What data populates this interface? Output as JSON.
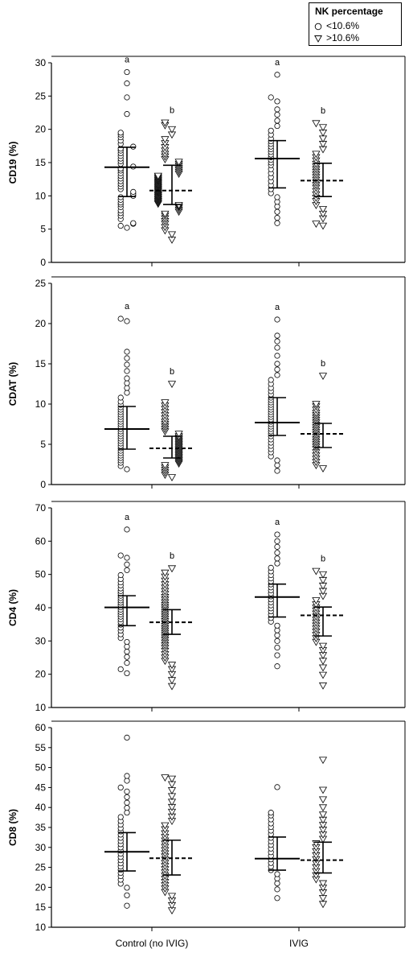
{
  "legend": {
    "title": "NK percentage",
    "items": [
      {
        "label": "<10.6%",
        "marker": "circle"
      },
      {
        "label": ">10.6%",
        "marker": "triangle-down"
      }
    ]
  },
  "chart_data": [
    {
      "type": "scatter",
      "ylabel": "CD19 (%)",
      "ylim": [
        0,
        30
      ],
      "yticks": [
        0,
        5,
        10,
        15,
        20,
        25,
        30
      ],
      "categories": [
        "Control (no IVIG)",
        "IVIG"
      ],
      "groups": [
        {
          "category": "Control (no IVIG)",
          "series": "<10.6%",
          "median": 14.3,
          "q1": 9.9,
          "q3": 17.3,
          "letter": "a",
          "values": [
            5.2,
            5.5,
            5.8,
            5.9,
            6.5,
            7.0,
            7.4,
            7.8,
            8.3,
            8.7,
            9.0,
            9.4,
            9.8,
            10.0,
            10.3,
            10.6,
            11.0,
            11.4,
            11.8,
            12.2,
            12.6,
            13.0,
            13.4,
            13.8,
            14.1,
            14.4,
            14.8,
            15.2,
            15.6,
            16.0,
            16.4,
            16.8,
            17.1,
            17.4,
            17.8,
            18.3,
            18.8,
            19.2,
            19.5,
            22.3,
            24.8,
            26.9,
            28.6
          ]
        },
        {
          "category": "Control (no IVIG)",
          "series": ">10.6%",
          "median": 10.8,
          "q1": 8.7,
          "q3": 14.6,
          "letter": "b",
          "values": [
            3.4,
            4.2,
            4.8,
            5.3,
            5.8,
            6.2,
            6.6,
            7.0,
            7.3,
            7.6,
            7.9,
            8.2,
            8.4,
            8.6,
            8.8,
            9.0,
            9.2,
            9.4,
            9.6,
            9.8,
            10.0,
            10.2,
            10.4,
            10.6,
            10.8,
            11.0,
            11.2,
            11.4,
            11.6,
            11.8,
            12.0,
            12.2,
            12.4,
            12.6,
            12.8,
            13.0,
            13.3,
            13.6,
            13.9,
            14.2,
            14.5,
            14.8,
            15.1,
            15.5,
            15.9,
            16.3,
            16.8,
            17.3,
            17.9,
            18.5,
            19.2,
            20.0,
            20.6,
            21.0
          ]
        },
        {
          "category": "IVIG",
          "series": "<10.6%",
          "median": 15.6,
          "q1": 11.2,
          "q3": 18.3,
          "letter": "a",
          "values": [
            5.9,
            6.7,
            7.6,
            8.4,
            9.1,
            9.8,
            10.4,
            11.0,
            11.6,
            12.2,
            12.8,
            13.4,
            14.0,
            14.6,
            15.0,
            15.4,
            15.8,
            16.2,
            16.6,
            17.0,
            17.4,
            17.8,
            18.2,
            18.6,
            19.2,
            19.8,
            20.5,
            21.3,
            22.2,
            23.0,
            24.2,
            24.8,
            28.2
          ]
        },
        {
          "category": "IVIG",
          "series": ">10.6%",
          "median": 12.3,
          "q1": 9.9,
          "q3": 14.9,
          "letter": "b",
          "values": [
            5.5,
            5.8,
            6.6,
            7.3,
            8.0,
            8.6,
            9.2,
            9.7,
            10.2,
            10.7,
            11.2,
            11.6,
            12.0,
            12.4,
            12.8,
            13.2,
            13.6,
            14.0,
            14.4,
            14.8,
            15.3,
            15.8,
            16.3,
            17.0,
            17.8,
            18.6,
            19.5,
            20.3,
            20.9
          ]
        }
      ]
    },
    {
      "type": "scatter",
      "ylabel": "CDAT (%)",
      "ylim": [
        0,
        25
      ],
      "yticks": [
        0,
        5,
        10,
        15,
        20,
        25
      ],
      "categories": [
        "Control (no IVIG)",
        "IVIG"
      ],
      "groups": [
        {
          "category": "Control (no IVIG)",
          "series": "<10.6%",
          "median": 6.9,
          "q1": 4.4,
          "q3": 9.7,
          "letter": "a",
          "values": [
            1.9,
            2.3,
            2.7,
            3.0,
            3.3,
            3.6,
            3.9,
            4.2,
            4.5,
            4.8,
            5.1,
            5.4,
            5.7,
            6.0,
            6.3,
            6.6,
            6.9,
            7.2,
            7.5,
            7.8,
            8.1,
            8.4,
            8.7,
            9.0,
            9.3,
            9.6,
            9.9,
            10.3,
            10.8,
            11.4,
            12.0,
            12.6,
            13.2,
            14.1,
            14.9,
            15.7,
            16.5,
            20.3,
            20.6
          ]
        },
        {
          "category": "Control (no IVIG)",
          "series": ">10.6%",
          "median": 4.5,
          "q1": 3.3,
          "q3": 6.0,
          "letter": "b",
          "values": [
            0.9,
            1.2,
            1.5,
            1.8,
            2.1,
            2.4,
            2.6,
            2.8,
            3.0,
            3.2,
            3.4,
            3.6,
            3.8,
            4.0,
            4.2,
            4.4,
            4.6,
            4.8,
            5.0,
            5.2,
            5.4,
            5.6,
            5.8,
            6.0,
            6.3,
            6.6,
            6.9,
            7.2,
            7.5,
            7.8,
            8.2,
            8.6,
            9.0,
            9.4,
            9.8,
            10.2,
            12.5
          ]
        },
        {
          "category": "IVIG",
          "series": "<10.6%",
          "median": 7.7,
          "q1": 6.1,
          "q3": 10.8,
          "letter": "a",
          "values": [
            1.7,
            2.4,
            3.0,
            3.5,
            4.0,
            4.4,
            4.8,
            5.2,
            5.6,
            6.0,
            6.3,
            6.6,
            6.9,
            7.2,
            7.5,
            7.8,
            8.1,
            8.4,
            8.7,
            9.0,
            9.3,
            9.6,
            9.9,
            10.2,
            10.5,
            10.8,
            11.2,
            11.6,
            12.0,
            12.5,
            13.0,
            13.6,
            14.3,
            15.0,
            16.0,
            17.0,
            17.8,
            18.5,
            20.5
          ]
        },
        {
          "category": "IVIG",
          "series": ">10.6%",
          "median": 6.3,
          "q1": 4.6,
          "q3": 7.6,
          "letter": "b",
          "values": [
            2.0,
            2.4,
            2.8,
            3.2,
            3.6,
            4.0,
            4.4,
            4.7,
            5.0,
            5.3,
            5.6,
            5.9,
            6.2,
            6.5,
            6.8,
            7.1,
            7.4,
            7.7,
            8.0,
            8.3,
            8.6,
            8.9,
            9.3,
            9.7,
            10.0,
            13.5
          ]
        }
      ]
    },
    {
      "type": "scatter",
      "ylabel": "CD4 (%)",
      "ylim": [
        10,
        70
      ],
      "yticks": [
        10,
        20,
        30,
        40,
        50,
        60,
        70
      ],
      "categories": [
        "Control (no IVIG)",
        "IVIG"
      ],
      "groups": [
        {
          "category": "Control (no IVIG)",
          "series": "<10.6%",
          "median": 40.1,
          "q1": 34.6,
          "q3": 43.6,
          "letter": "a",
          "values": [
            20.3,
            21.5,
            23.4,
            25.2,
            26.8,
            28.3,
            29.7,
            30.9,
            32.0,
            33.1,
            34.0,
            34.9,
            35.7,
            36.5,
            37.3,
            38.0,
            38.7,
            39.4,
            40.1,
            40.8,
            41.5,
            42.2,
            42.9,
            43.6,
            44.3,
            45.0,
            45.8,
            46.7,
            47.6,
            48.6,
            49.8,
            51.3,
            53.0,
            55.0,
            55.7,
            63.5
          ]
        },
        {
          "category": "Control (no IVIG)",
          "series": ">10.6%",
          "median": 35.6,
          "q1": 32.0,
          "q3": 39.4,
          "letter": "b",
          "values": [
            16.4,
            18.2,
            20.0,
            21.5,
            22.8,
            24.0,
            25.0,
            26.0,
            27.0,
            27.9,
            28.7,
            29.5,
            30.3,
            31.0,
            31.7,
            32.4,
            33.1,
            33.8,
            34.5,
            35.2,
            35.9,
            36.6,
            37.3,
            38.0,
            38.7,
            39.4,
            40.1,
            40.8,
            41.6,
            42.4,
            43.2,
            44.1,
            45.0,
            46.0,
            47.0,
            48.1,
            49.3,
            50.5,
            51.8
          ]
        },
        {
          "category": "IVIG",
          "series": "<10.6%",
          "median": 43.2,
          "q1": 37.2,
          "q3": 47.1,
          "letter": "a",
          "values": [
            22.4,
            25.7,
            28.0,
            30.0,
            31.7,
            33.2,
            34.6,
            35.8,
            36.9,
            37.9,
            38.9,
            39.8,
            40.7,
            41.6,
            42.5,
            43.4,
            44.3,
            45.2,
            46.1,
            47.0,
            47.9,
            48.8,
            49.8,
            50.9,
            52.0,
            53.3,
            54.8,
            56.5,
            58.3,
            60.0,
            62.0
          ]
        },
        {
          "category": "IVIG",
          "series": ">10.6%",
          "median": 37.7,
          "q1": 31.5,
          "q3": 40.2,
          "letter": "b",
          "values": [
            16.6,
            19.8,
            22.0,
            24.0,
            25.7,
            27.2,
            28.5,
            29.7,
            30.8,
            31.8,
            32.8,
            33.7,
            34.6,
            35.5,
            36.4,
            37.3,
            38.2,
            39.1,
            40.0,
            41.0,
            42.2,
            43.5,
            45.0,
            46.6,
            48.3,
            50.0,
            51.0
          ]
        }
      ]
    },
    {
      "type": "scatter",
      "ylabel": "CD8 (%)",
      "ylim": [
        10,
        60
      ],
      "yticks": [
        10,
        15,
        20,
        25,
        30,
        35,
        40,
        45,
        50,
        55,
        60
      ],
      "categories": [
        "Control (no IVIG)",
        "IVIG"
      ],
      "groups": [
        {
          "category": "Control (no IVIG)",
          "series": "<10.6%",
          "median": 28.9,
          "q1": 24.1,
          "q3": 33.7,
          "letter": "",
          "values": [
            15.4,
            18.0,
            19.9,
            20.9,
            21.9,
            22.8,
            23.6,
            24.4,
            25.2,
            26.0,
            26.8,
            27.6,
            28.4,
            29.2,
            30.0,
            30.8,
            31.6,
            32.4,
            33.2,
            34.0,
            34.8,
            35.7,
            36.6,
            37.6,
            38.7,
            39.9,
            41.2,
            42.6,
            44.0,
            45.0,
            46.7,
            47.9,
            57.5
          ]
        },
        {
          "category": "Control (no IVIG)",
          "series": ">10.6%",
          "median": 27.3,
          "q1": 23.1,
          "q3": 31.8,
          "letter": "",
          "values": [
            14.2,
            15.5,
            16.7,
            17.8,
            18.8,
            19.7,
            20.5,
            21.3,
            22.1,
            22.9,
            23.7,
            24.5,
            25.3,
            26.1,
            26.9,
            27.7,
            28.5,
            29.3,
            30.1,
            30.9,
            31.7,
            32.6,
            33.5,
            34.5,
            35.5,
            36.6,
            37.7,
            38.9,
            40.1,
            41.4,
            42.8,
            44.3,
            45.8,
            47.2,
            47.5
          ]
        },
        {
          "category": "IVIG",
          "series": "<10.6%",
          "median": 27.2,
          "q1": 24.3,
          "q3": 32.6,
          "letter": "",
          "values": [
            17.3,
            19.5,
            21.0,
            22.2,
            23.3,
            24.3,
            25.2,
            26.1,
            27.0,
            27.9,
            28.8,
            29.7,
            30.6,
            31.5,
            32.4,
            33.3,
            34.2,
            35.1,
            36.0,
            37.0,
            38.0,
            38.7,
            45.1
          ]
        },
        {
          "category": "IVIG",
          "series": ">10.6%",
          "median": 26.8,
          "q1": 23.6,
          "q3": 31.3,
          "letter": "",
          "values": [
            15.8,
            17.3,
            18.7,
            19.9,
            21.0,
            22.0,
            23.0,
            24.0,
            25.0,
            26.0,
            27.0,
            28.0,
            29.0,
            30.0,
            31.0,
            32.1,
            33.2,
            34.4,
            35.6,
            36.9,
            38.2,
            40.0,
            42.0,
            44.4,
            51.9
          ]
        }
      ]
    }
  ]
}
